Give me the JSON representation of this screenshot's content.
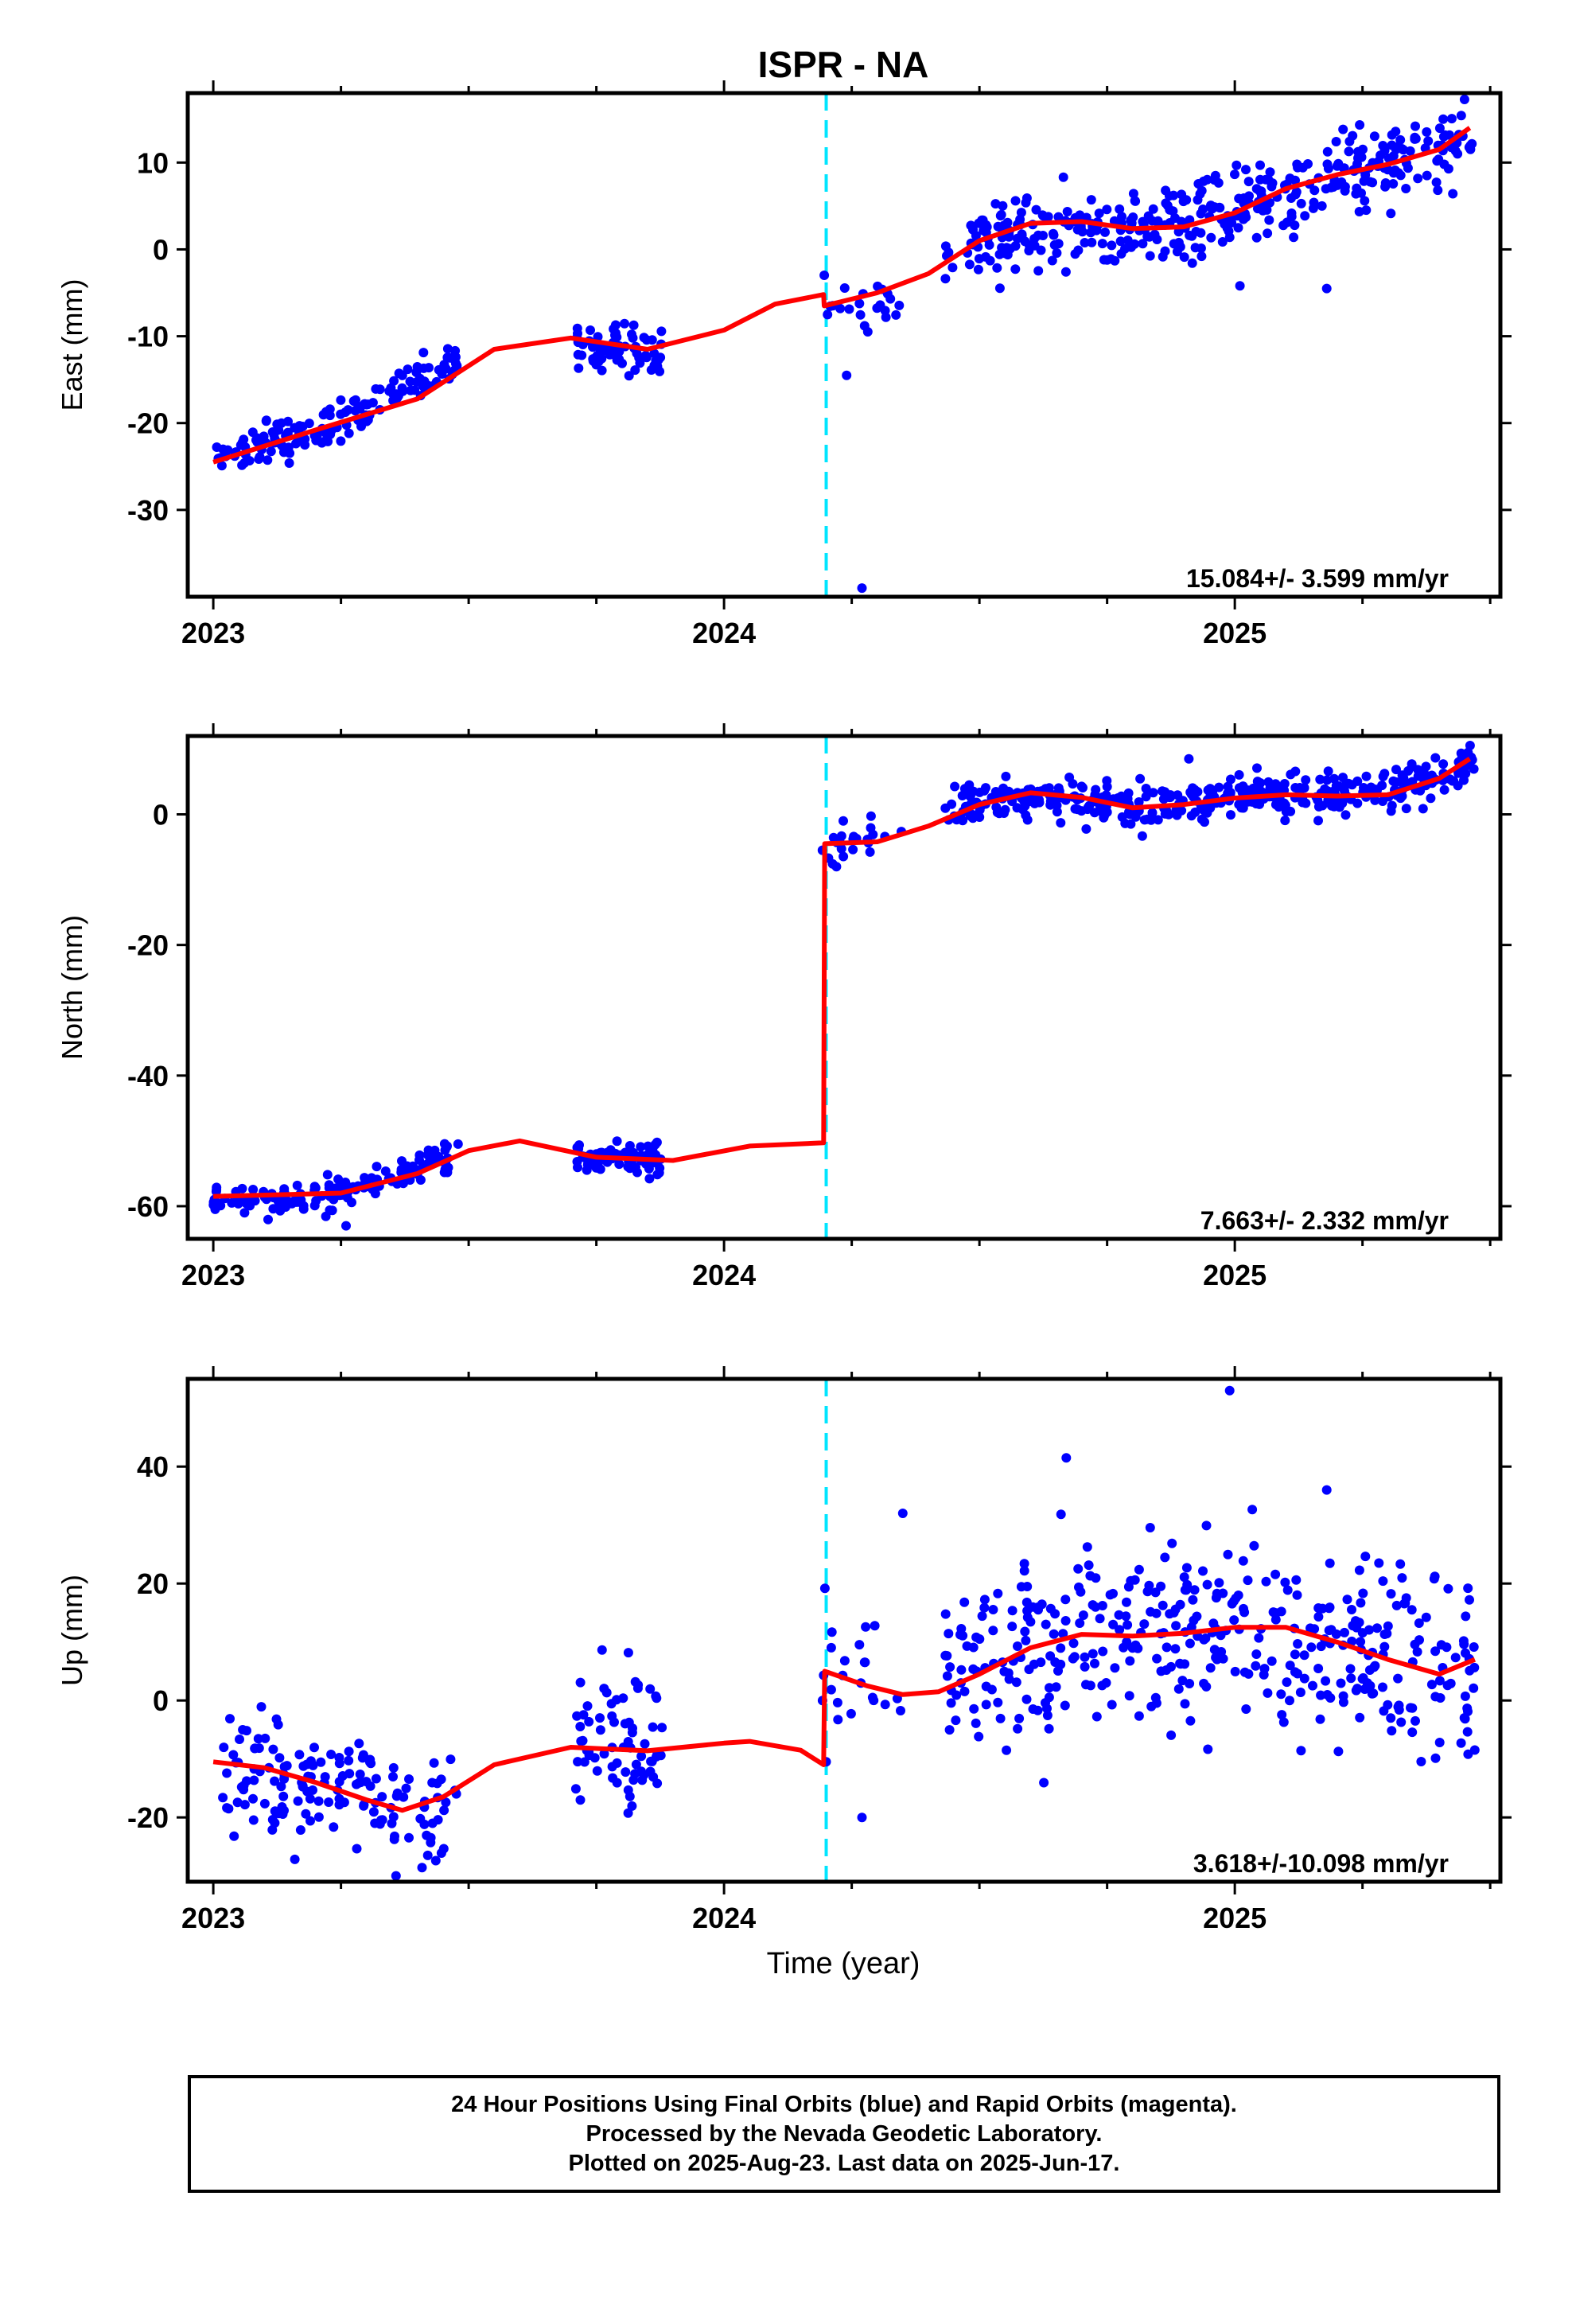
{
  "title": "ISPR - NA",
  "xlabel": "Time (year)",
  "footer": {
    "line1": "24 Hour Positions Using Final Orbits (blue) and Rapid Orbits (magenta).",
    "line2": "Processed by the Nevada Geodetic Laboratory.",
    "line3": "Plotted on 2025-Aug-23. Last data on 2025-Jun-17."
  },
  "colors": {
    "points": "#0000ff",
    "model": "#ff0000",
    "offset": "#00e5ff",
    "frame": "#000000"
  },
  "chart_data": [
    {
      "type": "scatter",
      "component": "East",
      "ylabel": "East (mm)",
      "rate_label": "15.084+/- 3.599 mm/yr",
      "xlim": [
        2022.95,
        2025.52
      ],
      "ylim": [
        -40,
        18
      ],
      "yticks": [
        10,
        0,
        -10,
        -20,
        -30
      ],
      "xticks": [
        2023,
        2024,
        2025
      ],
      "offset_epoch": 2024.2,
      "grid": false,
      "series": [
        {
          "name": "points",
          "kind": "points",
          "segments": [
            {
              "x0": 2023.0,
              "x1": 2023.48,
              "n": 150,
              "spread": 1.4,
              "trend": [
                [
                  2023.0,
                  -24.5
                ],
                [
                  2023.2,
                  -21.0
                ],
                [
                  2023.48,
                  -13.0
                ]
              ]
            },
            {
              "x0": 2023.71,
              "x1": 2023.88,
              "n": 70,
              "spread": 1.5,
              "trend": [
                [
                  2023.71,
                  -11.0
                ],
                [
                  2023.88,
                  -11.5
                ]
              ]
            },
            {
              "x0": 2024.19,
              "x1": 2024.35,
              "n": 22,
              "spread": 2.2,
              "trend": [
                [
                  2024.19,
                  -8.0
                ],
                [
                  2024.35,
                  -5.0
                ]
              ]
            },
            {
              "x0": 2024.43,
              "x1": 2024.93,
              "n": 190,
              "spread": 2.2,
              "trend": [
                [
                  2024.43,
                  -1.0
                ],
                [
                  2024.6,
                  2.5
                ],
                [
                  2024.93,
                  3.0
                ]
              ]
            },
            {
              "x0": 2024.93,
              "x1": 2025.47,
              "n": 210,
              "spread": 2.4,
              "trend": [
                [
                  2024.93,
                  4.0
                ],
                [
                  2025.2,
                  8.0
                ],
                [
                  2025.47,
                  13.5
                ]
              ]
            }
          ],
          "outliers": [
            [
              2024.27,
              -39
            ],
            [
              2025.18,
              -4.5
            ],
            [
              2025.01,
              -4.2
            ],
            [
              2024.24,
              -14.5
            ],
            [
              2024.99,
              1.4
            ]
          ]
        },
        {
          "name": "model",
          "kind": "line",
          "points": [
            [
              2023.0,
              -24.5
            ],
            [
              2023.2,
              -20.8
            ],
            [
              2023.4,
              -17.2
            ],
            [
              2023.55,
              -11.5
            ],
            [
              2023.7,
              -10.2
            ],
            [
              2023.85,
              -11.5
            ],
            [
              2024.0,
              -9.3
            ],
            [
              2024.1,
              -6.3
            ],
            [
              2024.195,
              -5.2
            ],
            [
              2024.196,
              -6.5
            ],
            [
              2024.3,
              -5.0
            ],
            [
              2024.4,
              -2.8
            ],
            [
              2024.5,
              1.0
            ],
            [
              2024.6,
              3.0
            ],
            [
              2024.7,
              3.2
            ],
            [
              2024.8,
              2.4
            ],
            [
              2024.9,
              2.6
            ],
            [
              2025.0,
              4.2
            ],
            [
              2025.1,
              7.0
            ],
            [
              2025.2,
              8.6
            ],
            [
              2025.3,
              9.8
            ],
            [
              2025.4,
              11.5
            ],
            [
              2025.46,
              14.0
            ]
          ]
        }
      ]
    },
    {
      "type": "scatter",
      "component": "North",
      "ylabel": "North (mm)",
      "rate_label": "7.663+/- 2.332 mm/yr",
      "xlim": [
        2022.95,
        2025.52
      ],
      "ylim": [
        -65,
        12
      ],
      "yticks": [
        0,
        -20,
        -40,
        -60
      ],
      "xticks": [
        2023,
        2024,
        2025
      ],
      "offset_epoch": 2024.2,
      "grid": false,
      "series": [
        {
          "name": "points",
          "kind": "points",
          "segments": [
            {
              "x0": 2023.0,
              "x1": 2023.48,
              "n": 150,
              "spread": 1.2,
              "trend": [
                [
                  2023.0,
                  -59.0
                ],
                [
                  2023.2,
                  -59.0
                ],
                [
                  2023.48,
                  -52.0
                ]
              ]
            },
            {
              "x0": 2023.71,
              "x1": 2023.88,
              "n": 70,
              "spread": 1.4,
              "trend": [
                [
                  2023.71,
                  -52.0
                ],
                [
                  2023.88,
                  -53.5
                ]
              ]
            },
            {
              "x0": 2024.19,
              "x1": 2024.35,
              "n": 22,
              "spread": 1.5,
              "trend": [
                [
                  2024.19,
                  -5.0
                ],
                [
                  2024.35,
                  -3.0
                ]
              ]
            },
            {
              "x0": 2024.43,
              "x1": 2025.47,
              "n": 400,
              "spread": 1.6,
              "trend": [
                [
                  2024.43,
                  1.0
                ],
                [
                  2024.6,
                  3.0
                ],
                [
                  2024.8,
                  1.0
                ],
                [
                  2025.0,
                  2.5
                ],
                [
                  2025.3,
                  3.5
                ],
                [
                  2025.47,
                  8.0
                ]
              ]
            }
          ],
          "outliers": [
            [
              2023.26,
              -63
            ],
            [
              2024.22,
              -8
            ],
            [
              2024.48,
              4.5
            ],
            [
              2024.91,
              8.5
            ]
          ]
        },
        {
          "name": "model",
          "kind": "line",
          "points": [
            [
              2023.0,
              -58.5
            ],
            [
              2023.15,
              -58.2
            ],
            [
              2023.25,
              -58.0
            ],
            [
              2023.4,
              -55.0
            ],
            [
              2023.5,
              -51.5
            ],
            [
              2023.6,
              -50.0
            ],
            [
              2023.75,
              -52.5
            ],
            [
              2023.9,
              -53.0
            ],
            [
              2024.05,
              -50.8
            ],
            [
              2024.195,
              -50.3
            ],
            [
              2024.197,
              -4.5
            ],
            [
              2024.3,
              -4.2
            ],
            [
              2024.4,
              -1.8
            ],
            [
              2024.5,
              1.5
            ],
            [
              2024.6,
              3.3
            ],
            [
              2024.7,
              2.6
            ],
            [
              2024.8,
              1.0
            ],
            [
              2024.9,
              1.5
            ],
            [
              2025.0,
              2.5
            ],
            [
              2025.1,
              3.0
            ],
            [
              2025.2,
              2.8
            ],
            [
              2025.3,
              3.0
            ],
            [
              2025.4,
              5.5
            ],
            [
              2025.46,
              8.5
            ]
          ]
        }
      ]
    },
    {
      "type": "scatter",
      "component": "Up",
      "ylabel": "Up (mm)",
      "rate_label": "3.618+/-10.098 mm/yr",
      "xlim": [
        2022.95,
        2025.52
      ],
      "ylim": [
        -31,
        55
      ],
      "yticks": [
        40,
        20,
        0,
        -20
      ],
      "xticks": [
        2023,
        2024,
        2025
      ],
      "offset_epoch": 2024.2,
      "grid": false,
      "series": [
        {
          "name": "points",
          "kind": "points",
          "segments": [
            {
              "x0": 2023.0,
              "x1": 2023.48,
              "n": 150,
              "spread": 5.0,
              "trend": [
                [
                  2023.0,
                  -11.0
                ],
                [
                  2023.2,
                  -14.0
                ],
                [
                  2023.4,
                  -18.0
                ],
                [
                  2023.48,
                  -15.0
                ]
              ]
            },
            {
              "x0": 2023.71,
              "x1": 2023.88,
              "n": 70,
              "spread": 6.0,
              "trend": [
                [
                  2023.71,
                  -8.0
                ],
                [
                  2023.88,
                  -8.0
                ]
              ]
            },
            {
              "x0": 2024.19,
              "x1": 2024.35,
              "n": 22,
              "spread": 6.0,
              "trend": [
                [
                  2024.19,
                  5.0
                ],
                [
                  2024.35,
                  2.0
                ]
              ]
            },
            {
              "x0": 2024.43,
              "x1": 2025.47,
              "n": 400,
              "spread": 8.0,
              "trend": [
                [
                  2024.43,
                  4.0
                ],
                [
                  2024.7,
                  11.0
                ],
                [
                  2025.0,
                  12.0
                ],
                [
                  2025.2,
                  8.0
                ],
                [
                  2025.47,
                  5.0
                ]
              ]
            }
          ],
          "outliers": [
            [
              2024.99,
              53
            ],
            [
              2024.67,
              41.5
            ],
            [
              2024.35,
              32
            ],
            [
              2025.18,
              36
            ],
            [
              2024.2,
              -10.5
            ],
            [
              2024.27,
              -20
            ]
          ]
        },
        {
          "name": "model",
          "kind": "line",
          "points": [
            [
              2023.0,
              -10.5
            ],
            [
              2023.1,
              -11.5
            ],
            [
              2023.2,
              -14.0
            ],
            [
              2023.3,
              -17.0
            ],
            [
              2023.37,
              -18.8
            ],
            [
              2023.45,
              -16.5
            ],
            [
              2023.55,
              -11.0
            ],
            [
              2023.7,
              -8.0
            ],
            [
              2023.85,
              -8.6
            ],
            [
              2024.0,
              -7.3
            ],
            [
              2024.05,
              -7.0
            ],
            [
              2024.15,
              -8.5
            ],
            [
              2024.195,
              -11.0
            ],
            [
              2024.197,
              5.0
            ],
            [
              2024.28,
              2.5
            ],
            [
              2024.35,
              1.0
            ],
            [
              2024.42,
              1.5
            ],
            [
              2024.5,
              4.5
            ],
            [
              2024.6,
              9.0
            ],
            [
              2024.7,
              11.3
            ],
            [
              2024.8,
              11.0
            ],
            [
              2024.9,
              11.5
            ],
            [
              2025.0,
              12.5
            ],
            [
              2025.1,
              12.5
            ],
            [
              2025.2,
              10.0
            ],
            [
              2025.3,
              7.0
            ],
            [
              2025.4,
              4.5
            ],
            [
              2025.47,
              7.0
            ]
          ]
        }
      ]
    }
  ]
}
